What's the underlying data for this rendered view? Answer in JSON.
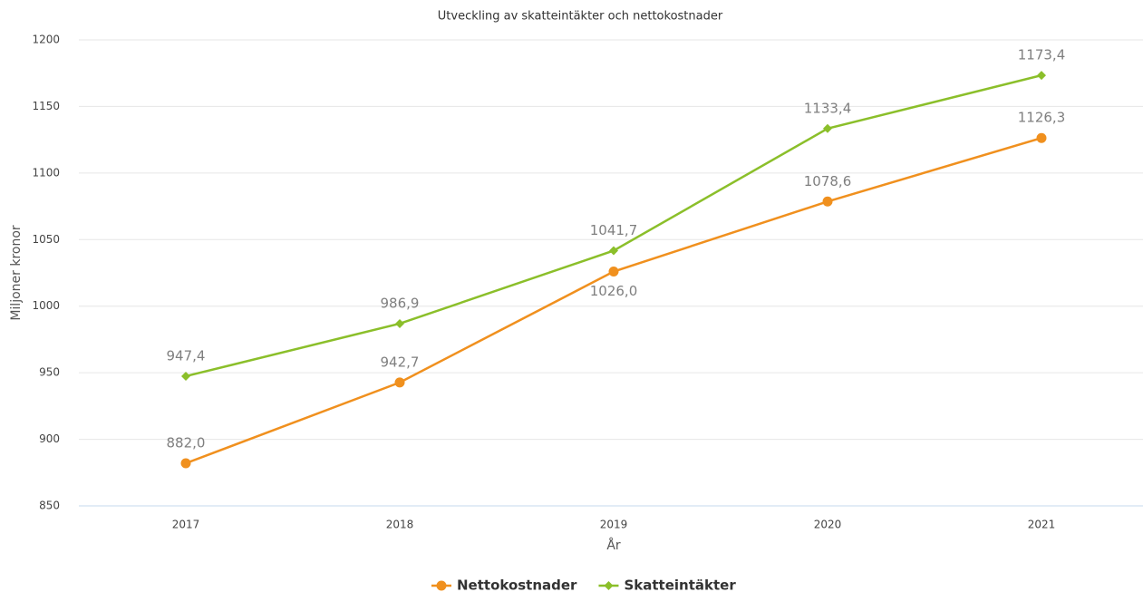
{
  "chart_data": {
    "type": "line",
    "title": "Utveckling av skatteintäkter och nettokostnader",
    "x_label": "År",
    "y_label": "Miljoner kronor",
    "categories": [
      "2017",
      "2018",
      "2019",
      "2020",
      "2021"
    ],
    "series": [
      {
        "name": "Nettokostnader",
        "color": "#f0901e",
        "marker": "circle",
        "values": [
          882.0,
          942.7,
          1026.0,
          1078.6,
          1126.3
        ],
        "value_labels": [
          "882,0",
          "942,7",
          "1026,0",
          "1078,6",
          "1126,3"
        ]
      },
      {
        "name": "Skatteintäkter",
        "color": "#8bbf2a",
        "marker": "diamond",
        "values": [
          947.4,
          986.9,
          1041.7,
          1133.4,
          1173.4
        ],
        "value_labels": [
          "947,4",
          "986,9",
          "1041,7",
          "1133,4",
          "1173,4"
        ]
      }
    ],
    "ylim": [
      850,
      1200
    ],
    "yticks": [
      850,
      900,
      950,
      1000,
      1050,
      1100,
      1150,
      1200
    ],
    "grid": true,
    "legend": "bottom"
  }
}
